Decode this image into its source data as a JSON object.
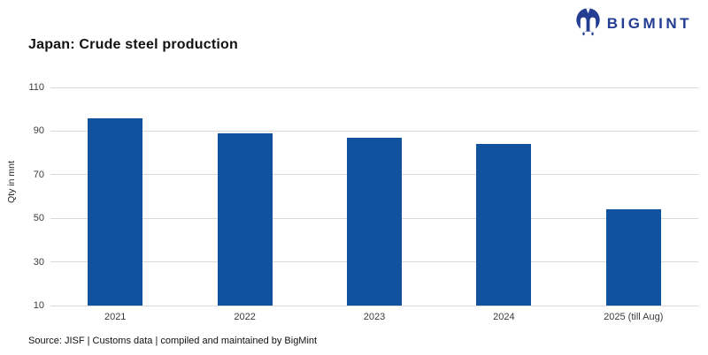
{
  "header": {
    "title": "Japan: Crude steel production",
    "brand_name": "BIGMINT"
  },
  "chart_data": {
    "type": "bar",
    "title": "Japan: Crude steel production",
    "categories": [
      "2021",
      "2022",
      "2023",
      "2024",
      "2025 (till Aug)"
    ],
    "values": [
      96,
      89,
      87,
      84,
      54
    ],
    "xlabel": "",
    "ylabel": "Qty in mnt",
    "ylim": [
      10,
      110
    ],
    "yticks": [
      110,
      90,
      70,
      50,
      30,
      10
    ],
    "grid": true,
    "legend": "none",
    "bar_color": "#11529E"
  },
  "footer": {
    "source": "Source: JISF | Customs data | compiled and maintained by BigMint"
  },
  "colors": {
    "bar": "#11529E",
    "brand": "#233D92",
    "grid": "#D9D9D9",
    "tick_text": "#3B3B3B"
  }
}
